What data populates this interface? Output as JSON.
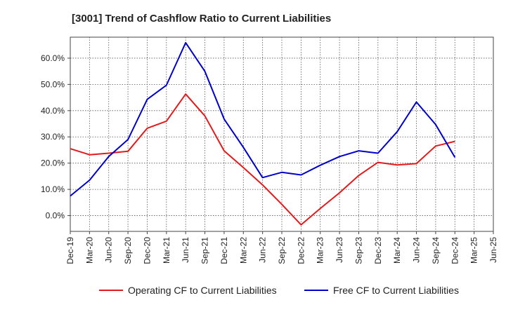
{
  "chart_data": {
    "type": "line",
    "title": "[3001]  Trend of Cashflow Ratio to Current Liabilities",
    "xlabel": "",
    "ylabel": "",
    "x": [
      "Dec-19",
      "Mar-20",
      "Jun-20",
      "Sep-20",
      "Dec-20",
      "Mar-21",
      "Jun-21",
      "Sep-21",
      "Dec-21",
      "Mar-22",
      "Jun-22",
      "Sep-22",
      "Dec-22",
      "Mar-23",
      "Jun-23",
      "Sep-23",
      "Dec-23",
      "Mar-24",
      "Jun-24",
      "Sep-24",
      "Dec-24"
    ],
    "x_tick_labels": [
      "Dec-19",
      "Mar-20",
      "Jun-20",
      "Sep-20",
      "Dec-20",
      "Mar-21",
      "Jun-21",
      "Sep-21",
      "Dec-21",
      "Mar-22",
      "Jun-22",
      "Sep-22",
      "Dec-22",
      "Mar-23",
      "Jun-23",
      "Sep-23",
      "Dec-23",
      "Mar-24",
      "Jun-24",
      "Sep-24",
      "Dec-24",
      "Mar-25",
      "Jun-25"
    ],
    "ylim": [
      -6,
      68
    ],
    "y_ticks": [
      0,
      10,
      20,
      30,
      40,
      50,
      60
    ],
    "y_tick_labels": [
      "0.0%",
      "10.0%",
      "20.0%",
      "30.0%",
      "40.0%",
      "50.0%",
      "60.0%"
    ],
    "grid": true,
    "legend_position": "bottom",
    "series": [
      {
        "name": "Operating CF to Current Liabilities",
        "color": "#e31a1c",
        "values": [
          25.5,
          23.2,
          23.8,
          24.5,
          33.3,
          36.0,
          46.3,
          38.0,
          24.7,
          18.3,
          11.7,
          4.3,
          -3.5,
          2.7,
          8.7,
          15.3,
          20.3,
          19.3,
          19.8,
          26.5,
          28.3
        ]
      },
      {
        "name": "Free CF to Current Liabilities",
        "color": "#0000cc",
        "values": [
          7.5,
          13.5,
          22.5,
          29.0,
          44.3,
          49.7,
          65.9,
          55.0,
          36.8,
          26.0,
          14.5,
          16.5,
          15.5,
          19.2,
          22.5,
          24.7,
          23.8,
          32.0,
          43.3,
          34.7,
          22.2
        ]
      }
    ]
  }
}
